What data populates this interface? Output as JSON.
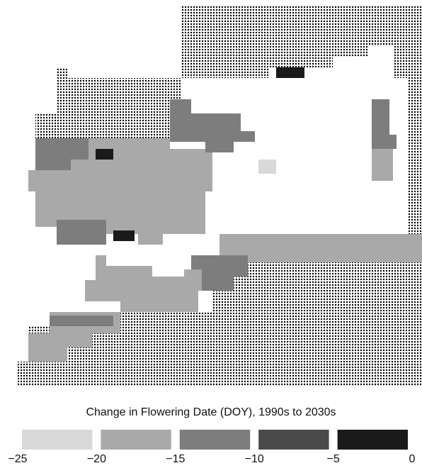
{
  "legend": {
    "title": "Change in Flowering Date (DOY), 1990s to 2030s",
    "ticks": [
      {
        "value": -25,
        "label": "−25"
      },
      {
        "value": -20,
        "label": "−20"
      },
      {
        "value": -15,
        "label": "−15"
      },
      {
        "value": -10,
        "label": "−10"
      },
      {
        "value": -5,
        "label": "−5"
      },
      0
    ],
    "colors": [
      "#d9d9d9",
      "#a9a9a9",
      "#7d7d7d",
      "#4a4a4a",
      "#1a1a1a"
    ]
  }
}
